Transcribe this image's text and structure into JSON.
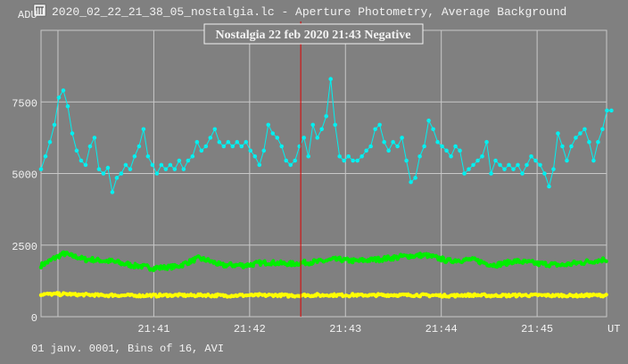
{
  "window_title": "2020_02_22_21_38_05_nostalgia.lc - Aperture Photometry, Average Background",
  "footer": "01 janv. 0001, Bins of 16, AVI",
  "chart_data": {
    "type": "line",
    "title": "Nostalgia 22 feb 2020 21:43 Negative",
    "ylabel": "ADU",
    "xlabel": "UT",
    "ylim": [
      0,
      10000
    ],
    "yticks": [
      0,
      2500,
      5000,
      7500
    ],
    "ytick_labels": [
      "0",
      "2500",
      "5000",
      "7500"
    ],
    "x_units": "seconds after 21:40:00",
    "xlim": [
      -10.6,
      343.5
    ],
    "xticks": [
      0,
      60,
      120,
      180,
      240,
      300
    ],
    "xtick_labels": [
      "",
      "21:41",
      "21:42",
      "21:43",
      "21:44",
      "21:45"
    ],
    "marker_line_x": 152,
    "grid": true,
    "colors": {
      "background": "#808080",
      "grid": "#c8c8c8",
      "marker": "#e00000",
      "cyan": "#00f0f0",
      "green": "#00ee00",
      "yellow": "#ffff00"
    },
    "series": [
      {
        "name": "cyan",
        "x_start": -10.6,
        "x_step": 2.79,
        "values": [
          5150,
          5600,
          6100,
          6700,
          7650,
          7900,
          7350,
          6400,
          5800,
          5450,
          5300,
          5950,
          6250,
          5150,
          5000,
          5200,
          4350,
          4850,
          5000,
          5300,
          5150,
          5600,
          5950,
          6550,
          5600,
          5300,
          5000,
          5300,
          5150,
          5300,
          5150,
          5450,
          5150,
          5450,
          5600,
          6100,
          5800,
          5950,
          6250,
          6550,
          6100,
          5950,
          6100,
          5950,
          6100,
          5950,
          6100,
          5800,
          5600,
          5300,
          5800,
          6700,
          6400,
          6250,
          5950,
          5450,
          5300,
          5450,
          5950,
          6250,
          5600,
          6700,
          6250,
          6550,
          7000,
          8300,
          6700,
          5600,
          5450,
          5600,
          5450,
          5450,
          5600,
          5800,
          5950,
          6550,
          6700,
          6100,
          5800,
          6100,
          5950,
          6250,
          5450,
          4700,
          4850,
          5600,
          5950,
          6850,
          6550,
          6100,
          5950,
          5800,
          5600,
          5950,
          5800,
          5000,
          5150,
          5300,
          5450,
          5600,
          6100,
          5000,
          5450,
          5300,
          5150,
          5300,
          5150,
          5300,
          5000,
          5300,
          5600,
          5450,
          5300,
          5000,
          4550,
          5150,
          6400,
          5950,
          5450,
          5950,
          6250,
          6400,
          6550,
          6100,
          5450,
          6100,
          6550,
          7200,
          7200
        ]
      },
      {
        "name": "green",
        "x_start": -10.6,
        "x_step": 14.16,
        "values": [
          1800,
          2200,
          2000,
          1950,
          1800,
          1700,
          1750,
          2050,
          1800,
          1800,
          1900,
          1850,
          1900,
          2000,
          1950,
          2000,
          2100,
          2150,
          1950,
          2000,
          1800,
          1950,
          1850,
          1800,
          1900,
          2000,
          2150
        ]
      },
      {
        "name": "yellow",
        "x_start": -10.6,
        "x_step": 14.16,
        "values": [
          780,
          790,
          760,
          750,
          740,
          740,
          750,
          750,
          740,
          750,
          750,
          740,
          750,
          760,
          750,
          750,
          760,
          750,
          740,
          750,
          740,
          750,
          750,
          740,
          740,
          750,
          760
        ]
      }
    ]
  }
}
